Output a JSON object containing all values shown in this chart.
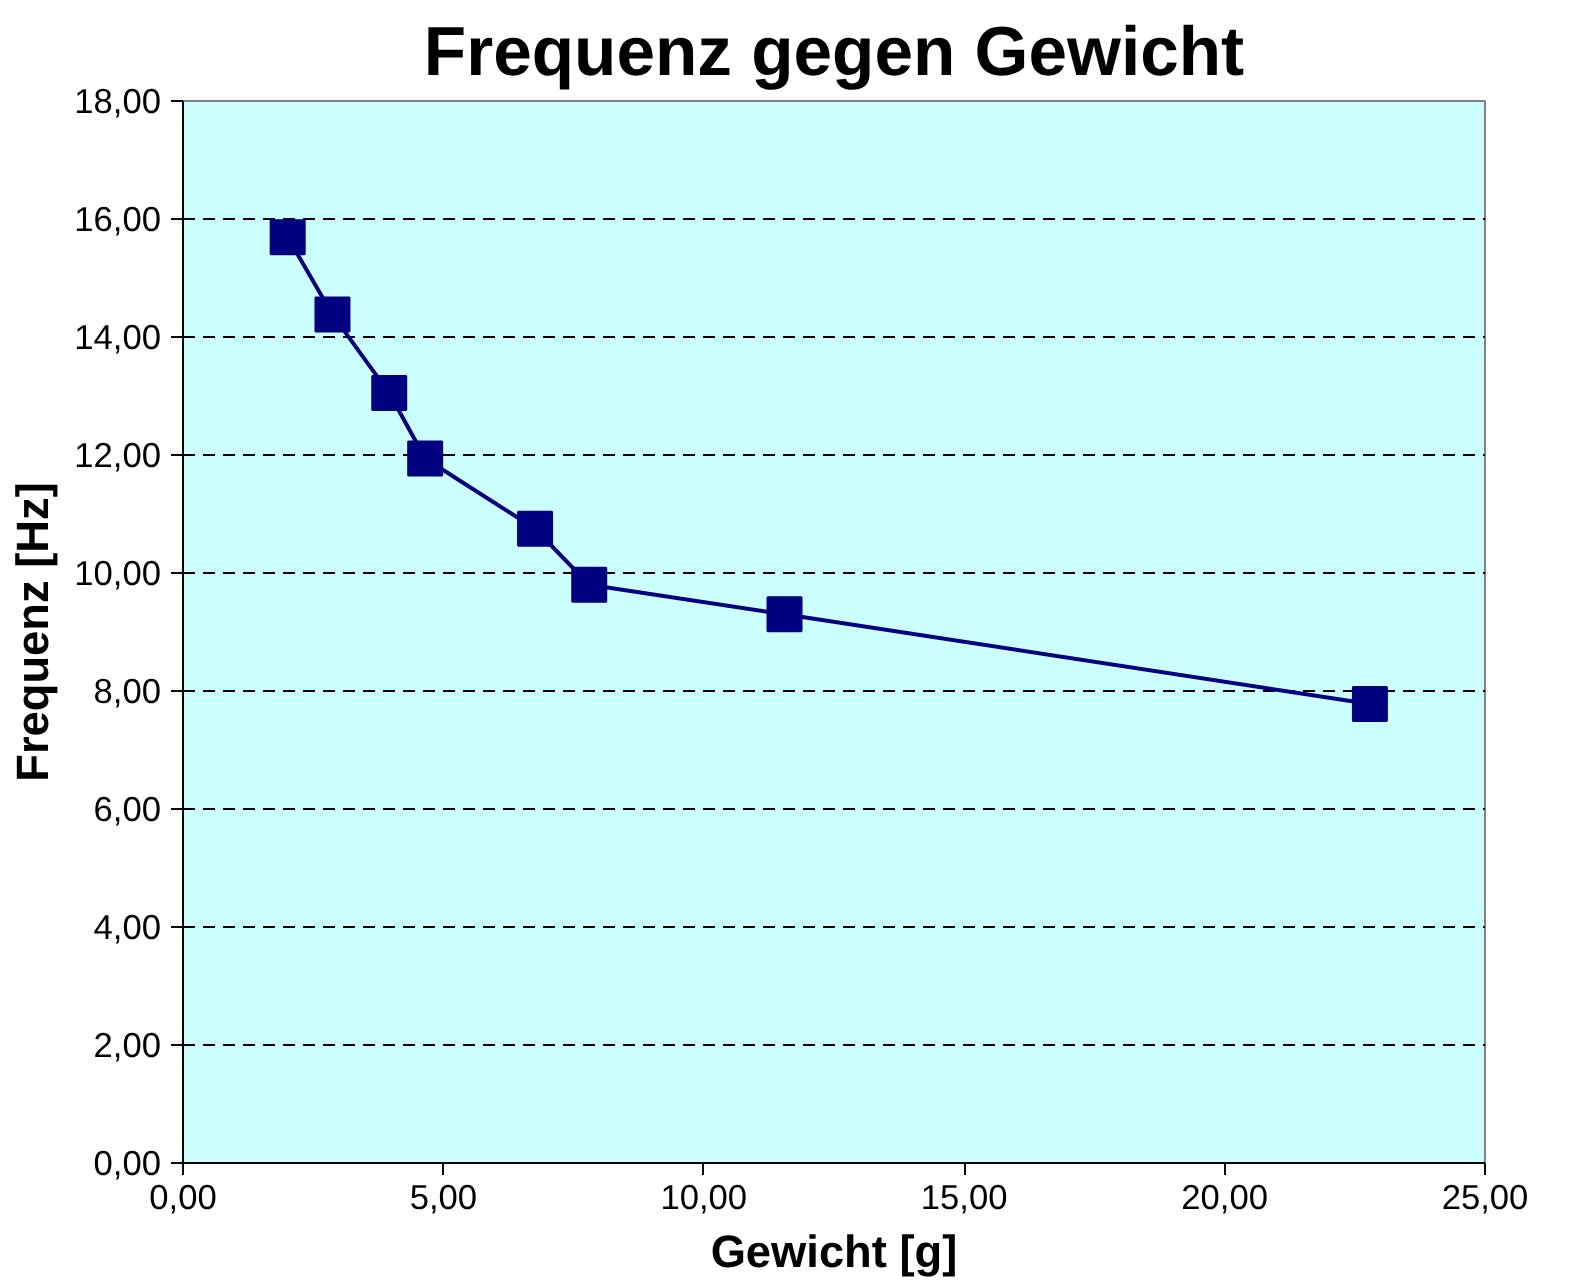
{
  "chart_data": {
    "type": "line",
    "title": "Frequenz gegen Gewicht",
    "xlabel": "Gewicht [g]",
    "ylabel": "Frequenz [Hz]",
    "x": [
      2.01,
      2.87,
      3.96,
      4.65,
      6.76,
      7.8,
      11.55,
      22.79
    ],
    "series": [
      {
        "color": "#000080",
        "values": [
          15.69,
          14.38,
          13.05,
          11.94,
          10.75,
          9.8,
          9.3,
          7.78
        ]
      }
    ],
    "xlim": [
      0,
      25
    ],
    "ylim": [
      0,
      18
    ],
    "xticks": [
      {
        "value": 0,
        "label": "0,00"
      },
      {
        "value": 5,
        "label": "5,00"
      },
      {
        "value": 10,
        "label": "10,00"
      },
      {
        "value": 15,
        "label": "15,00"
      },
      {
        "value": 20,
        "label": "20,00"
      },
      {
        "value": 25,
        "label": "25,00"
      }
    ],
    "yticks": [
      {
        "value": 0,
        "label": "0,00"
      },
      {
        "value": 2,
        "label": "2,00"
      },
      {
        "value": 4,
        "label": "4,00"
      },
      {
        "value": 6,
        "label": "6,00"
      },
      {
        "value": 8,
        "label": "8,00"
      },
      {
        "value": 10,
        "label": "10,00"
      },
      {
        "value": 12,
        "label": "12,00"
      },
      {
        "value": 14,
        "label": "14,00"
      },
      {
        "value": 16,
        "label": "16,00"
      },
      {
        "value": 18,
        "label": "18,00"
      }
    ],
    "grid": "y",
    "marker": "square",
    "line_style": "solid"
  }
}
